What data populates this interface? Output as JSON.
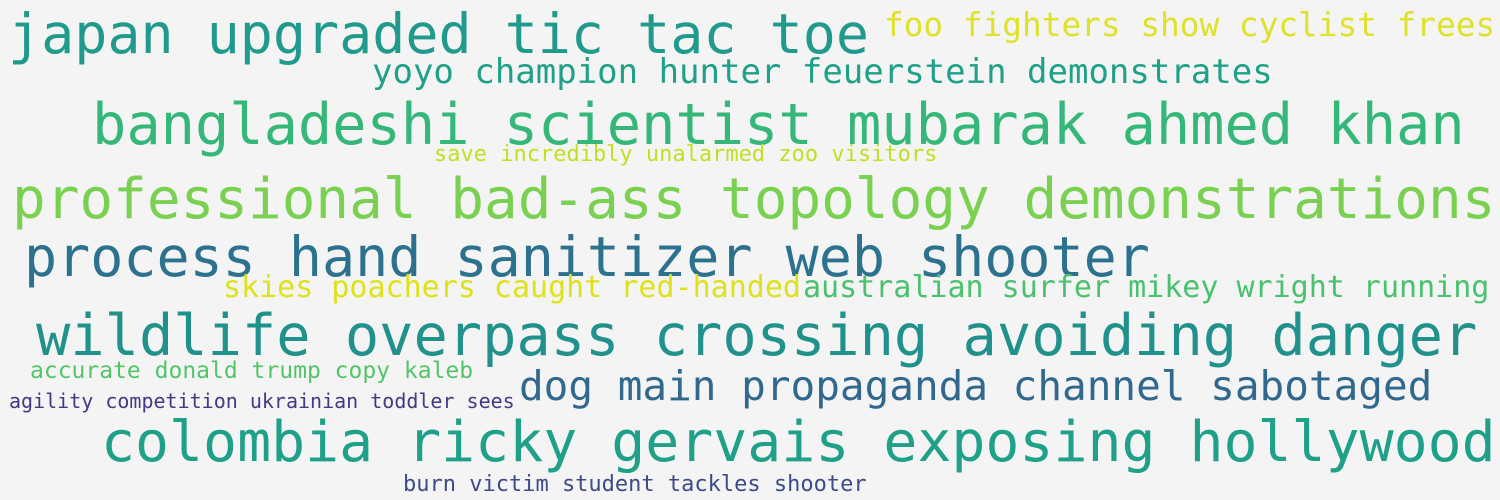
{
  "word_cloud": {
    "background": "#f4f4f4",
    "phrases": [
      {
        "id": "japan",
        "text": "japan upgraded tic tac toe",
        "color": "#209a8c"
      },
      {
        "id": "foo",
        "text": "foo fighters show cyclist frees",
        "color": "#dfe22b"
      },
      {
        "id": "yoyo",
        "text": "yoyo champion hunter feuerstein demonstrates",
        "color": "#1fa187"
      },
      {
        "id": "bangla",
        "text": "bangladeshi scientist mubarak ahmed khan",
        "color": "#35b779"
      },
      {
        "id": "save",
        "text": "save incredibly unalarmed zoo visitors",
        "color": "#c2df23"
      },
      {
        "id": "topology",
        "text": "professional bad-ass topology demonstrations",
        "color": "#7ad151"
      },
      {
        "id": "process",
        "text": "process hand sanitizer web shooter",
        "color": "#2c728e"
      },
      {
        "id": "skies",
        "text": "skies poachers caught red-handed",
        "color": "#dde318"
      },
      {
        "id": "surfer",
        "text": "australian surfer mikey wright running",
        "color": "#4ac16d"
      },
      {
        "id": "wildlife",
        "text": "wildlife overpass crossing avoiding danger",
        "color": "#21918c"
      },
      {
        "id": "accurate",
        "text": "accurate donald trump copy kaleb",
        "color": "#52c569"
      },
      {
        "id": "dog",
        "text": "dog main propaganda channel sabotaged",
        "color": "#31688e"
      },
      {
        "id": "agility",
        "text": "agility competition ukrainian toddler sees",
        "color": "#443983"
      },
      {
        "id": "colombia",
        "text": "colombia ricky gervais exposing hollywood",
        "color": "#1fa088"
      },
      {
        "id": "burn",
        "text": "burn victim student tackles shooter",
        "color": "#3e4a89"
      }
    ]
  }
}
